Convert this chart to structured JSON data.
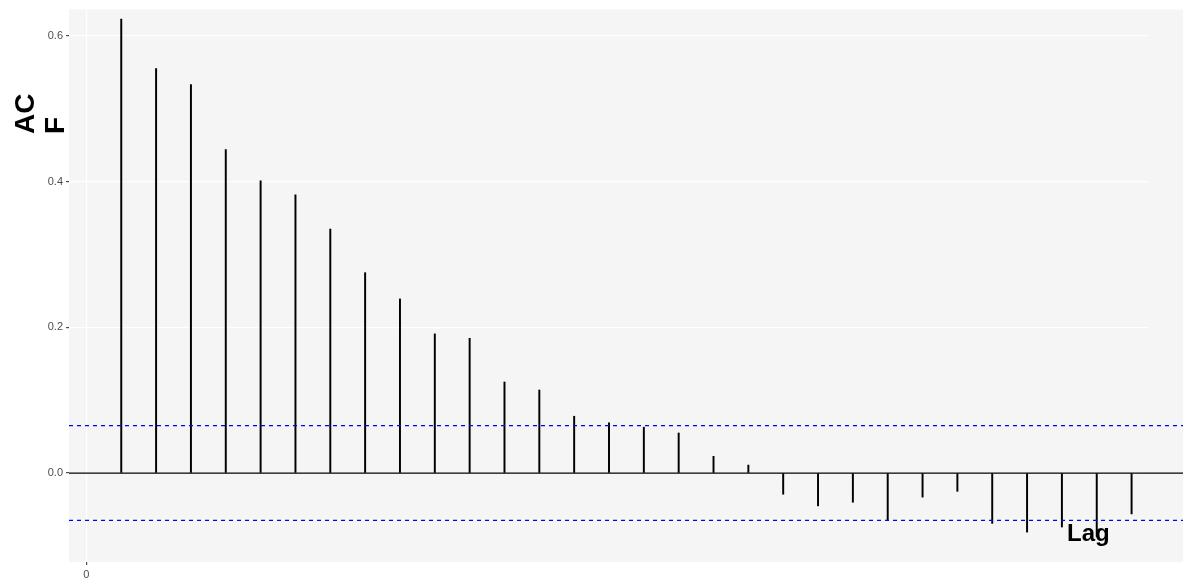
{
  "chart_data": {
    "type": "bar",
    "ylabel": "ACF",
    "xlabel": "Lag",
    "categories": [
      "0",
      null,
      null,
      null,
      null,
      null,
      null,
      null,
      null,
      null,
      null,
      null,
      null,
      null,
      null,
      null,
      null,
      null,
      null,
      null,
      null,
      null,
      null,
      null,
      null,
      null,
      null,
      null,
      null,
      null,
      null
    ],
    "values": [
      null,
      0.623,
      0.555,
      0.533,
      0.444,
      0.401,
      0.382,
      0.335,
      0.275,
      0.239,
      0.191,
      0.185,
      0.125,
      0.114,
      0.078,
      0.069,
      0.063,
      0.055,
      0.023,
      0.011,
      -0.029,
      -0.045,
      -0.04,
      -0.065,
      -0.033,
      -0.025,
      -0.069,
      -0.081,
      -0.074,
      -0.087,
      -0.056
    ],
    "color": "#000000",
    "ylim": [
      -0.122,
      0.636
    ],
    "yticks": [
      {
        "value": 0,
        "label": "0.0"
      },
      {
        "value": 0.2,
        "label": "0.2"
      },
      {
        "value": 0.4,
        "label": "0.4"
      },
      {
        "value": 0.6,
        "label": "0.6"
      }
    ],
    "ref_lines": [
      {
        "axis": "y",
        "value": 0,
        "color": "#000000",
        "line_style": "solid"
      },
      {
        "axis": "y",
        "value": 0.065,
        "color": "#0000ff",
        "line_style": "dashed"
      },
      {
        "axis": "y",
        "value": -0.065,
        "color": "#0000ff",
        "line_style": "dashed"
      }
    ],
    "grid": true,
    "legend": false
  }
}
